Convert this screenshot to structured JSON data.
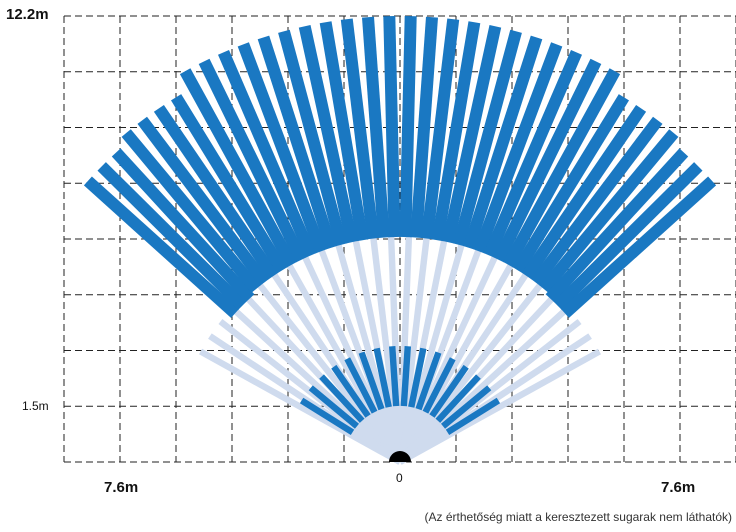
{
  "labels": {
    "top_range": "12.2m",
    "mid_range": "1.5m",
    "origin": "0",
    "left_width": "7.6m",
    "right_width": "7.6m",
    "note": "(Az érthetőség miatt a keresztezett sugarak nem láthatók)"
  },
  "colors": {
    "long_beam": "#1a78c2",
    "mid_beam": "#cfdbee",
    "short_beam": "#1a78c2",
    "grid": "#222222",
    "origin_dot": "#000000"
  },
  "zones": {
    "long_beam_count": 36,
    "mid_beam_count": 28,
    "short_beam_count": 16
  }
}
